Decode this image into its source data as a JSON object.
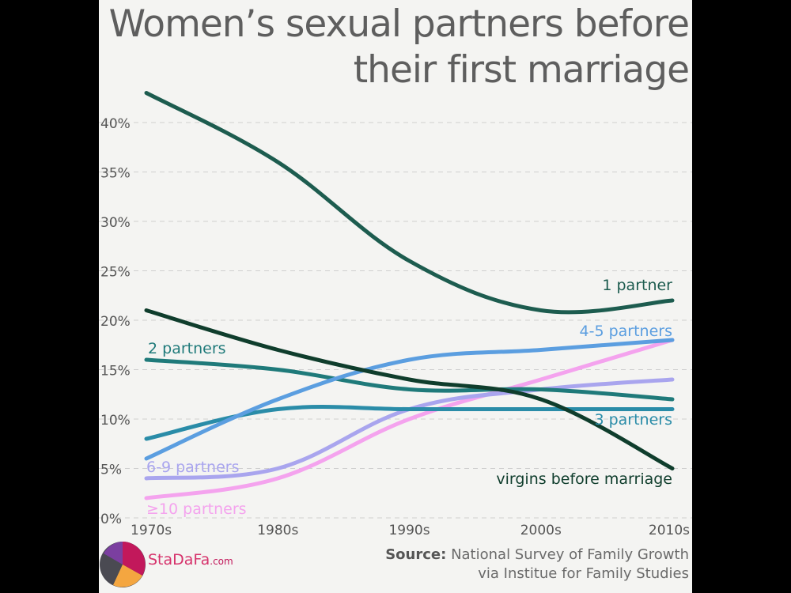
{
  "title_line1": "Women’s sexual partners before",
  "title_line2": "their first marriage",
  "chart_data": {
    "type": "line",
    "title": "Women’s sexual partners before their first marriage",
    "categories": [
      "1970s",
      "1980s",
      "1990s",
      "2000s",
      "2010s"
    ],
    "yticks": [
      "0%",
      "5%",
      "10%",
      "15%",
      "20%",
      "25%",
      "30%",
      "35%",
      "40%"
    ],
    "ylim": [
      0,
      42
    ],
    "grid": true,
    "series": [
      {
        "id": "one",
        "name": "1 partner",
        "color": "#1d5c4f",
        "values": [
          43,
          36,
          26,
          21,
          22
        ]
      },
      {
        "id": "virgins",
        "name": "virgins before marriage",
        "color": "#0f3d2c",
        "values": [
          21,
          17,
          14,
          12,
          5
        ]
      },
      {
        "id": "two",
        "name": "2 partners",
        "color": "#1f7a7a",
        "values": [
          16,
          15,
          13,
          13,
          12
        ]
      },
      {
        "id": "three",
        "name": "3 partners",
        "color": "#2a8ca8",
        "values": [
          8,
          11,
          11,
          11,
          11
        ]
      },
      {
        "id": "fourfive",
        "name": "4-5 partners",
        "color": "#5b9ee0",
        "values": [
          6,
          12,
          16,
          17,
          18
        ]
      },
      {
        "id": "sixnine",
        "name": "6-9 partners",
        "color": "#a9a5ee",
        "values": [
          4,
          5,
          11,
          13,
          14
        ]
      },
      {
        "id": "ten",
        "name": "≥10 partners",
        "color": "#f4a3ee",
        "values": [
          2,
          4,
          10,
          14,
          18
        ]
      }
    ]
  },
  "source_label": "Source:",
  "source_line1": "National Survey of Family Growth",
  "source_line2": "via Institue for Family Studies",
  "brand_name": "StaDaFa",
  "brand_suffix": ".com"
}
